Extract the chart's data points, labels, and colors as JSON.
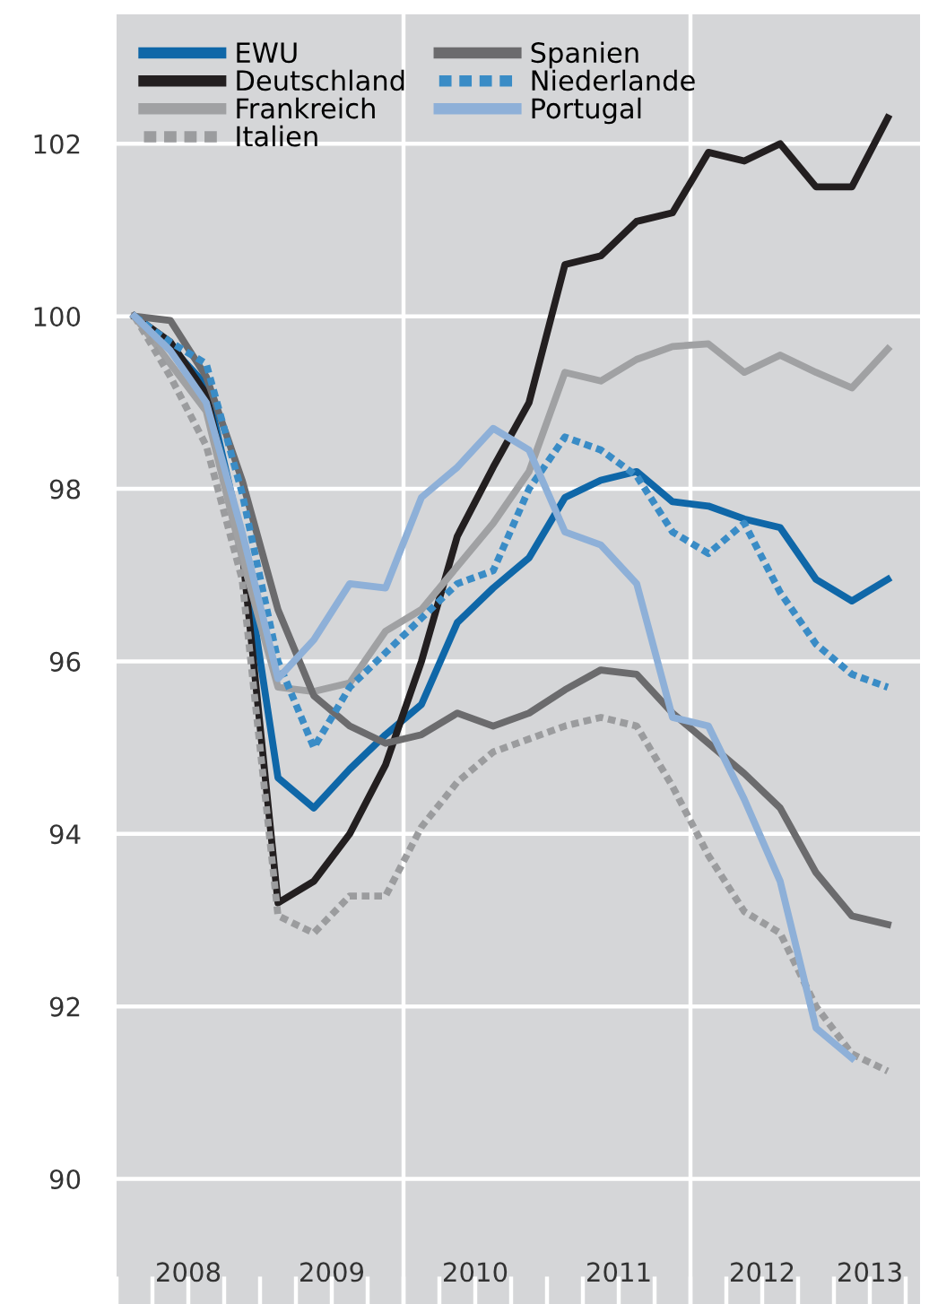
{
  "chart_data": {
    "type": "line",
    "x": [
      2008.125,
      2008.375,
      2008.625,
      2008.875,
      2009.125,
      2009.375,
      2009.625,
      2009.875,
      2010.125,
      2010.375,
      2010.625,
      2010.875,
      2011.125,
      2011.375,
      2011.625,
      2011.875,
      2012.125,
      2012.375,
      2012.625,
      2012.875,
      2013.125,
      2013.375
    ],
    "series": [
      {
        "name": "EWU",
        "color": "#0f67a8",
        "line_style": "solid",
        "values": [
          100,
          99.65,
          99.2,
          97.4,
          94.65,
          94.3,
          94.75,
          95.15,
          95.5,
          96.45,
          96.85,
          97.2,
          97.9,
          98.1,
          98.2,
          97.85,
          97.8,
          97.65,
          97.55,
          96.95,
          96.7,
          96.95
        ]
      },
      {
        "name": "Deutschland",
        "color": "#231f20",
        "line_style": "solid",
        "values": [
          100,
          99.7,
          99.1,
          97.3,
          93.2,
          93.45,
          94.0,
          94.8,
          96.0,
          97.45,
          98.25,
          99.0,
          100.6,
          100.7,
          101.1,
          101.2,
          101.9,
          101.8,
          102.0,
          101.5,
          101.5,
          102.3
        ]
      },
      {
        "name": "Frankreich",
        "color": "#a0a1a3",
        "line_style": "solid",
        "values": [
          100,
          99.45,
          98.9,
          97.2,
          95.7,
          95.65,
          95.75,
          96.35,
          96.6,
          97.1,
          97.6,
          98.2,
          99.35,
          99.25,
          99.5,
          99.65,
          99.68,
          99.35,
          99.55,
          99.35,
          99.17,
          99.62
        ]
      },
      {
        "name": "Italien",
        "color": "#9b9c9e",
        "line_style": "dotted",
        "values": [
          100,
          99.3,
          98.5,
          96.95,
          93.05,
          92.85,
          93.28,
          93.28,
          94.08,
          94.6,
          94.95,
          95.1,
          95.25,
          95.35,
          95.25,
          94.55,
          93.75,
          93.1,
          92.85,
          92.0,
          91.45,
          91.25
        ]
      },
      {
        "name": "Spanien",
        "color": "#6b6b6d",
        "line_style": "solid",
        "values": [
          100,
          99.95,
          99.3,
          98.1,
          96.6,
          95.6,
          95.25,
          95.05,
          95.15,
          95.4,
          95.25,
          95.4,
          95.67,
          95.9,
          95.85,
          95.4,
          95.05,
          94.7,
          94.3,
          93.55,
          93.05,
          92.95
        ]
      },
      {
        "name": "Niederlande",
        "color": "#3a8cc6",
        "line_style": "dotted",
        "values": [
          100,
          99.7,
          99.45,
          97.95,
          96.0,
          95.0,
          95.7,
          96.1,
          96.5,
          96.9,
          97.05,
          98.0,
          98.6,
          98.45,
          98.15,
          97.5,
          97.25,
          97.6,
          96.8,
          96.2,
          95.85,
          95.7
        ]
      },
      {
        "name": "Portugal",
        "color": "#8eb0d8",
        "line_style": "solid",
        "values": [
          100,
          99.6,
          99.0,
          97.5,
          95.8,
          96.25,
          96.9,
          96.85,
          97.9,
          98.25,
          98.7,
          98.45,
          97.5,
          97.35,
          96.9,
          95.35,
          95.25,
          94.4,
          93.45,
          91.75,
          91.4,
          null
        ]
      }
    ],
    "xlim": [
      2008,
      2013.6
    ],
    "xticks": [
      {
        "value": 2008,
        "label": null
      },
      {
        "value": 2008.25,
        "label": null
      },
      {
        "value": 2008.5,
        "label": "2008"
      },
      {
        "value": 2008.75,
        "label": null
      },
      {
        "value": 2009,
        "label": null
      },
      {
        "value": 2009.25,
        "label": null
      },
      {
        "value": 2009.5,
        "label": "2009"
      },
      {
        "value": 2009.75,
        "label": null
      },
      {
        "value": 2010,
        "label": null
      },
      {
        "value": 2010.25,
        "label": null
      },
      {
        "value": 2010.5,
        "label": "2010"
      },
      {
        "value": 2010.75,
        "label": null
      },
      {
        "value": 2011,
        "label": null
      },
      {
        "value": 2011.25,
        "label": null
      },
      {
        "value": 2011.5,
        "label": "2011"
      },
      {
        "value": 2011.75,
        "label": null
      },
      {
        "value": 2012,
        "label": null
      },
      {
        "value": 2012.25,
        "label": null
      },
      {
        "value": 2012.5,
        "label": "2012"
      },
      {
        "value": 2012.75,
        "label": null
      },
      {
        "value": 2013,
        "label": null
      },
      {
        "value": 2013.25,
        "label": "2013"
      },
      {
        "value": 2013.5,
        "label": null
      }
    ],
    "ylim": [
      88.55,
      103.5
    ],
    "yticks": [
      90,
      92,
      94,
      96,
      98,
      100,
      102
    ],
    "grid": "y",
    "ref_lines": [
      {
        "axis": "x",
        "value": 2010,
        "color": "#ffffff"
      },
      {
        "axis": "x",
        "value": 2012,
        "color": "#ffffff"
      }
    ],
    "legend": "top left"
  }
}
